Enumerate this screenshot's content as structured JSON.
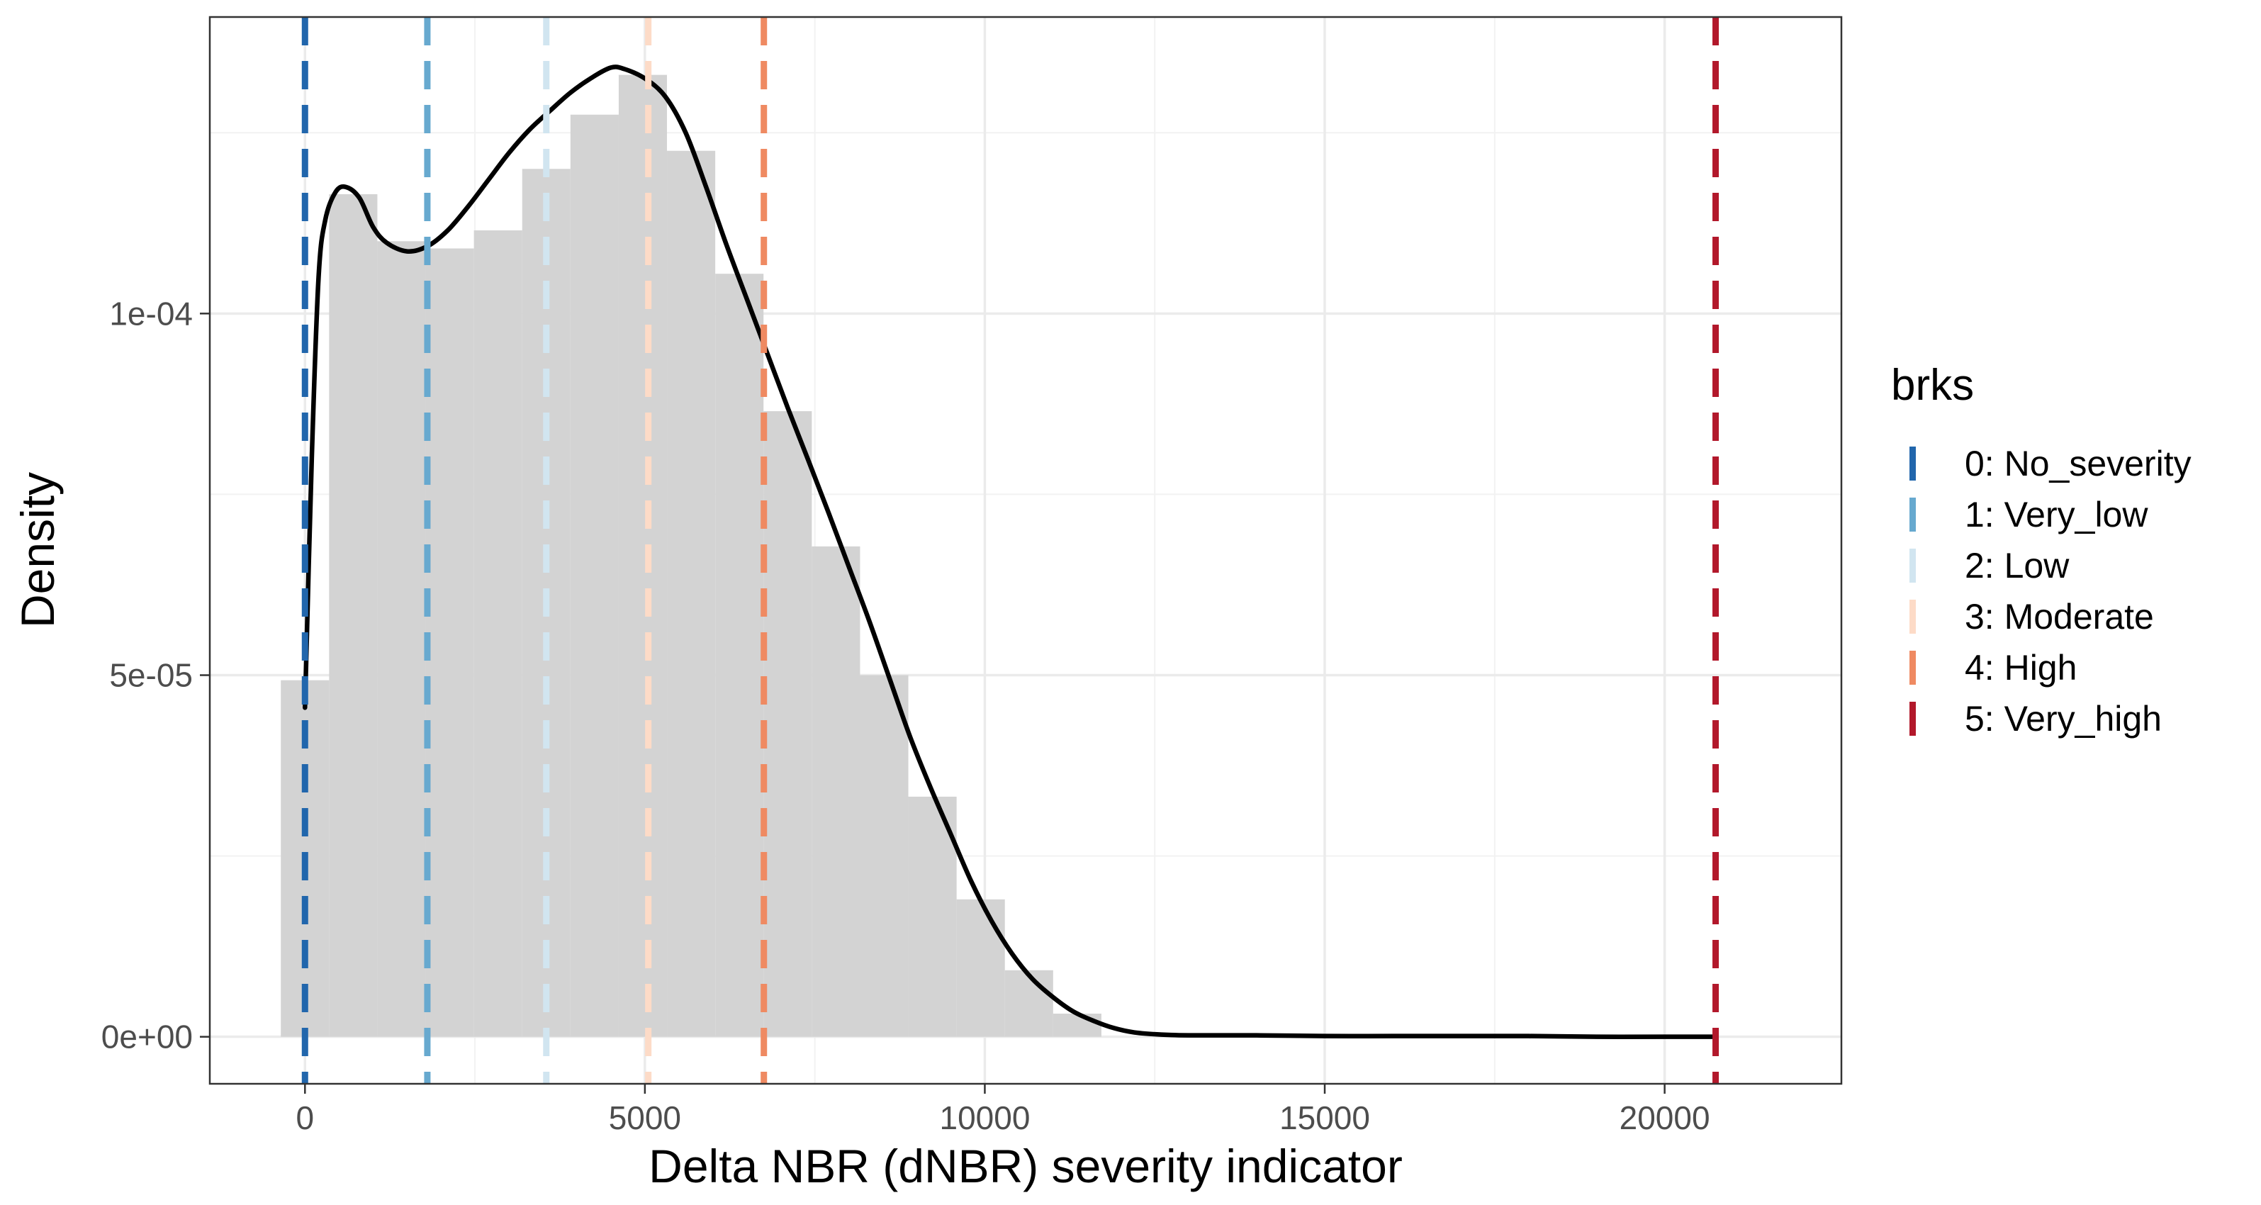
{
  "chart_data": {
    "type": "histogram-density",
    "title": "",
    "xlabel": "Delta NBR (dNBR) severity indicator",
    "ylabel": "Density",
    "xlim": [
      -1400,
      22600
    ],
    "ylim": [
      -6.5e-06,
      0.000141
    ],
    "x_ticks": [
      0,
      5000,
      10000,
      15000,
      20000
    ],
    "x_tick_labels": [
      "0",
      "5000",
      "10000",
      "15000",
      "20000"
    ],
    "y_ticks": [
      0,
      5e-05,
      0.0001
    ],
    "y_tick_labels": [
      "0e+00",
      "5e-05",
      "1e-04"
    ],
    "grid": true,
    "histogram": {
      "color": "#d3d3d3",
      "bin_width": 710,
      "bins": [
        {
          "x0": -355,
          "x1": 355,
          "density": 4.93e-05
        },
        {
          "x0": 355,
          "x1": 1065,
          "density": 0.0001165
        },
        {
          "x0": 1065,
          "x1": 1775,
          "density": 0.00011
        },
        {
          "x0": 1775,
          "x1": 2485,
          "density": 0.000109
        },
        {
          "x0": 2485,
          "x1": 3195,
          "density": 0.0001115
        },
        {
          "x0": 3195,
          "x1": 3905,
          "density": 0.00012
        },
        {
          "x0": 3905,
          "x1": 4615,
          "density": 0.0001275
        },
        {
          "x0": 4615,
          "x1": 5325,
          "density": 0.000133
        },
        {
          "x0": 5325,
          "x1": 6035,
          "density": 0.0001225
        },
        {
          "x0": 6035,
          "x1": 6745,
          "density": 0.0001055
        },
        {
          "x0": 6745,
          "x1": 7455,
          "density": 8.65e-05
        },
        {
          "x0": 7455,
          "x1": 8165,
          "density": 6.78e-05
        },
        {
          "x0": 8165,
          "x1": 8875,
          "density": 5e-05
        },
        {
          "x0": 8875,
          "x1": 9585,
          "density": 3.32e-05
        },
        {
          "x0": 9585,
          "x1": 10295,
          "density": 1.9e-05
        },
        {
          "x0": 10295,
          "x1": 11005,
          "density": 9.2e-06
        },
        {
          "x0": 11005,
          "x1": 11715,
          "density": 3.2e-06
        }
      ]
    },
    "density_curve": {
      "color": "#000000",
      "x": [
        0,
        100,
        200,
        300,
        450,
        600,
        800,
        1000,
        1200,
        1500,
        1800,
        2100,
        2400,
        2700,
        3000,
        3300,
        3600,
        3900,
        4200,
        4500,
        4700,
        5000,
        5300,
        5600,
        5900,
        6200,
        6500,
        6800,
        7100,
        7400,
        7700,
        8000,
        8300,
        8600,
        8900,
        9200,
        9500,
        9800,
        10100,
        10400,
        10700,
        11000,
        11300,
        11600,
        11900,
        12200,
        12600,
        13000,
        14000,
        15000,
        16000,
        17000,
        18000,
        19000,
        20000,
        20700
      ],
      "y": [
        4.55e-05,
        8e-05,
        0.000105,
        0.000113,
        0.0001168,
        0.0001175,
        0.000116,
        0.000112,
        0.0001098,
        0.0001086,
        0.0001093,
        0.0001115,
        0.0001148,
        0.0001185,
        0.0001222,
        0.0001254,
        0.000128,
        0.0001305,
        0.0001325,
        0.000134,
        0.0001338,
        0.0001325,
        0.00013,
        0.000125,
        0.0001175,
        0.0001095,
        0.000102,
        9.45e-05,
        8.7e-05,
        7.98e-05,
        7.25e-05,
        6.5e-05,
        5.75e-05,
        4.95e-05,
        4.15e-05,
        3.45e-05,
        2.8e-05,
        2.15e-05,
        1.6e-05,
        1.15e-05,
        8e-06,
        5.5e-06,
        3.5e-06,
        2.2e-06,
        1.2e-06,
        6e-07,
        3e-07,
        2e-07,
        2e-07,
        1e-07,
        1e-07,
        1e-07,
        1e-07,
        0.0,
        0.0,
        0.0
      ]
    },
    "breaks": [
      {
        "label": "0: No_severity",
        "x": 0,
        "color": "#2166ac"
      },
      {
        "label": "1: Very_low",
        "x": 1800,
        "color": "#67a9cf"
      },
      {
        "label": "2: Low",
        "x": 3550,
        "color": "#d1e5f0"
      },
      {
        "label": "3: Moderate",
        "x": 5050,
        "color": "#fddbc7"
      },
      {
        "label": "4: High",
        "x": 6750,
        "color": "#ef8a62"
      },
      {
        "label": "5: Very_high",
        "x": 20750,
        "color": "#b2182b"
      }
    ],
    "legend": {
      "title": "brks",
      "placement": "right"
    }
  }
}
